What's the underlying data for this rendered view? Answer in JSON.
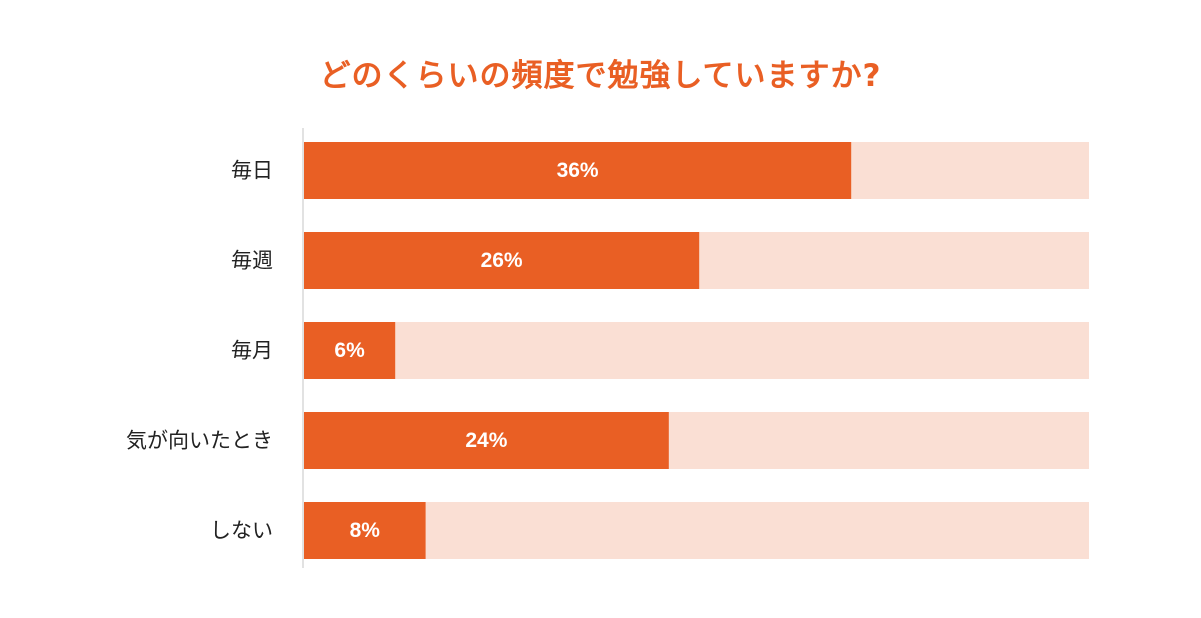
{
  "colors": {
    "bar": "#E95F24",
    "track": "#FADFD4",
    "title": "#E95F24",
    "axis": "#D9D9D9"
  },
  "chart_data": {
    "type": "bar",
    "orientation": "horizontal",
    "title": "どのくらいの頻度で勉強していますか?",
    "xlabel": "",
    "ylabel": "",
    "xlim": [
      0,
      100
    ],
    "grid": false,
    "legend": "none",
    "categories": [
      "毎日",
      "毎週",
      "毎月",
      "気が向いたとき",
      "しない"
    ],
    "values": [
      36,
      26,
      6,
      24,
      8
    ],
    "data_labels": [
      "36%",
      "26%",
      "6%",
      "24%",
      "8%"
    ]
  }
}
